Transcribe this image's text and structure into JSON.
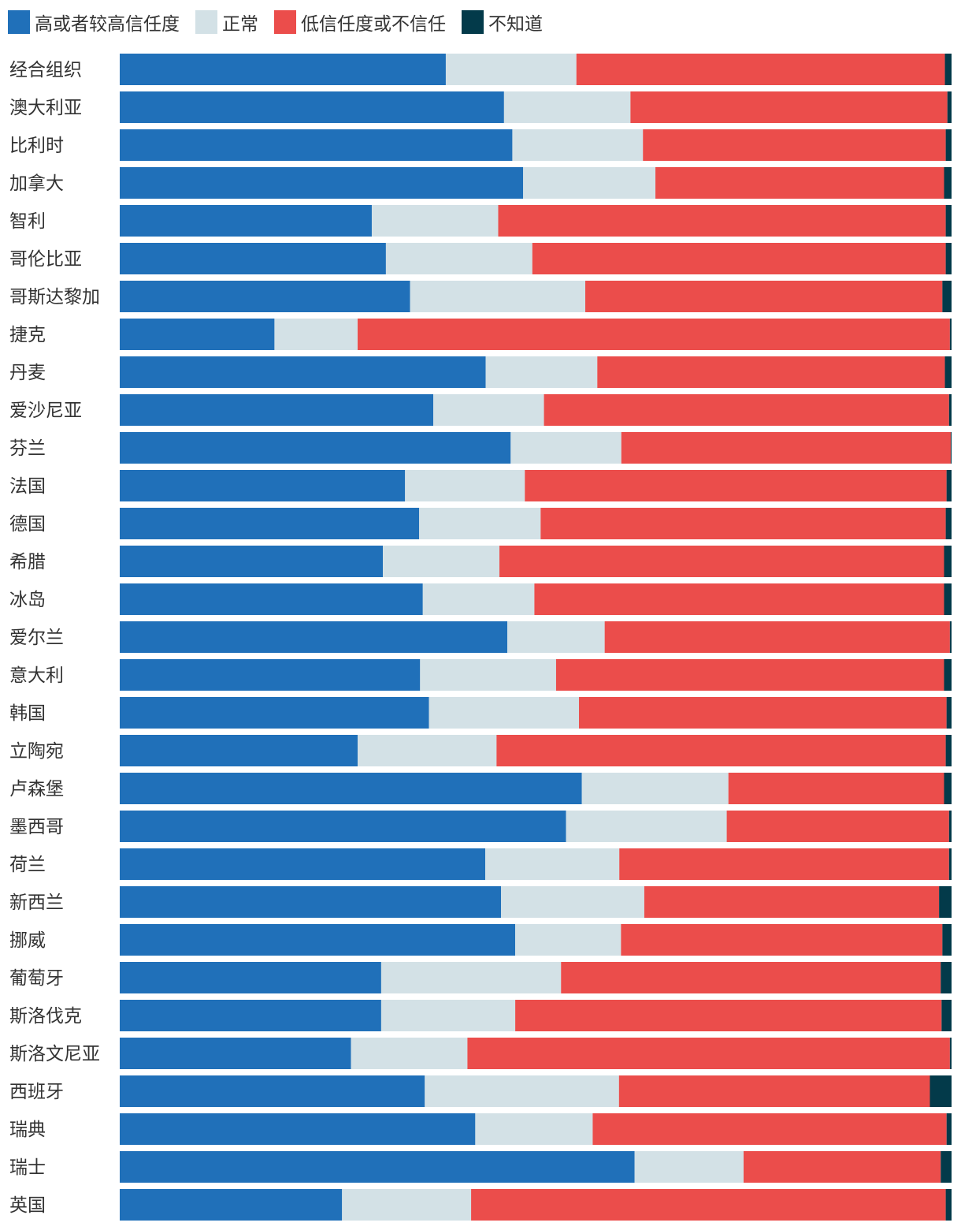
{
  "chart_data": {
    "type": "bar",
    "orientation": "horizontal",
    "stacked": true,
    "normalized_to": 100,
    "legend_placement": "top-left",
    "grid": false,
    "xlim": [
      0,
      100
    ],
    "categories": [
      "经合组织",
      "澳大利亚",
      "比利时",
      "加拿大",
      "智利",
      "哥伦比亚",
      "哥斯达黎加",
      "捷克",
      "丹麦",
      "爱沙尼亚",
      "芬兰",
      "法国",
      "德国",
      "希腊",
      "冰岛",
      "爱尔兰",
      "意大利",
      "韩国",
      "立陶宛",
      "卢森堡",
      "墨西哥",
      "荷兰",
      "新西兰",
      "挪威",
      "葡萄牙",
      "斯洛伐克",
      "斯洛文尼亚",
      "西班牙",
      "瑞典",
      "瑞士",
      "英国"
    ],
    "series": [
      {
        "name": "高或者较高信任度",
        "color": "#2070b9",
        "values": [
          39.2,
          46.2,
          47.2,
          48.5,
          30.3,
          32.0,
          34.8,
          18.6,
          43.9,
          37.7,
          47.0,
          34.3,
          36.0,
          31.6,
          36.4,
          46.6,
          36.0,
          37.1,
          28.6,
          55.5,
          53.6,
          43.9,
          45.8,
          47.5,
          31.4,
          31.4,
          27.8,
          36.6,
          43.0,
          61.9,
          26.7
        ]
      },
      {
        "name": "正常",
        "color": "#d3e1e6",
        "values": [
          15.7,
          15.2,
          15.7,
          15.9,
          15.2,
          17.6,
          21.0,
          10.0,
          13.4,
          13.3,
          13.3,
          14.4,
          14.6,
          14.0,
          13.4,
          11.7,
          16.3,
          18.0,
          16.7,
          17.6,
          19.3,
          16.1,
          17.2,
          12.7,
          21.6,
          16.1,
          14.0,
          23.3,
          14.2,
          13.1,
          15.5
        ]
      },
      {
        "name": "低信任度或不信任",
        "color": "#eb4d4b",
        "values": [
          44.3,
          38.1,
          36.4,
          34.7,
          53.8,
          49.7,
          42.8,
          71.2,
          41.7,
          48.7,
          39.6,
          50.7,
          48.7,
          53.4,
          49.2,
          41.5,
          46.5,
          44.1,
          54.0,
          25.9,
          26.7,
          39.6,
          35.4,
          38.6,
          45.6,
          51.2,
          58.0,
          37.3,
          42.8,
          23.7,
          57.0
        ]
      },
      {
        "name": "不知道",
        "color": "#033a4a",
        "values": [
          0.8,
          0.5,
          0.7,
          0.9,
          0.7,
          0.7,
          1.1,
          0.2,
          0.8,
          0.3,
          0.1,
          0.6,
          0.7,
          0.9,
          0.9,
          0.2,
          0.9,
          0.6,
          0.7,
          0.9,
          0.3,
          0.3,
          1.5,
          1.1,
          1.3,
          1.2,
          0.2,
          2.6,
          0.6,
          1.3,
          0.7
        ]
      }
    ]
  }
}
